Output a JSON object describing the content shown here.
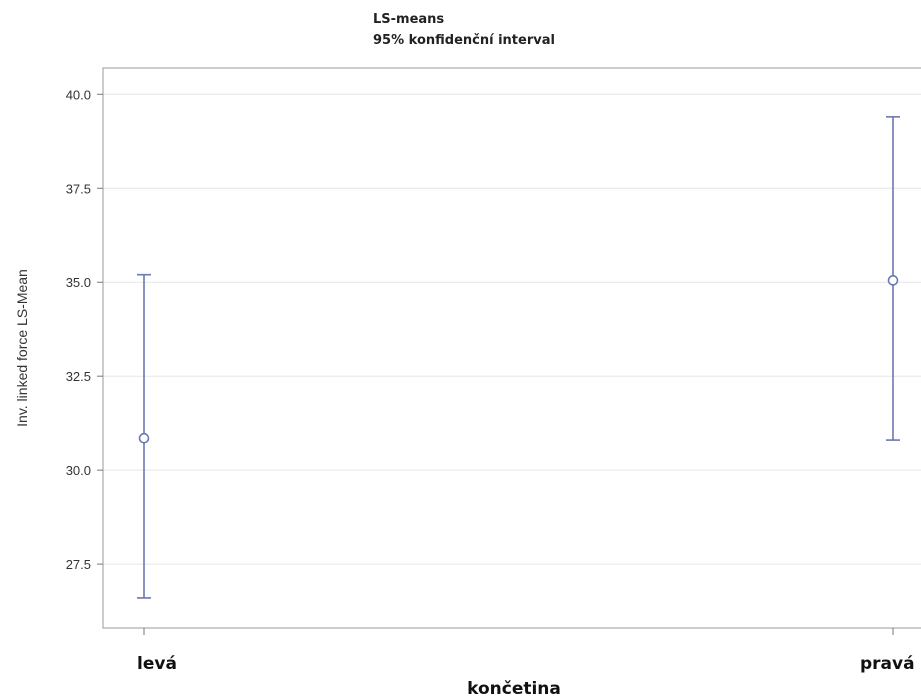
{
  "chart_data": {
    "type": "scatter",
    "title": "LS-means",
    "subtitle": "95% konfidenční interval",
    "xlabel": "končetina",
    "ylabel": "Inv. linked force LS-Mean",
    "categories": [
      "levá",
      "pravá"
    ],
    "series": [
      {
        "estimate": [
          30.85,
          35.05
        ],
        "lower": [
          26.6,
          30.8
        ],
        "upper": [
          35.2,
          39.4
        ]
      }
    ],
    "ylim": [
      25.8,
      40.7
    ],
    "yticks": [
      27.5,
      30.0,
      32.5,
      35.0,
      37.5,
      40.0
    ],
    "ytick_labels": [
      "27.5",
      "30.0",
      "32.5",
      "35.0",
      "37.5",
      "40.0"
    ],
    "grid": true,
    "color": "#6b78b4"
  }
}
